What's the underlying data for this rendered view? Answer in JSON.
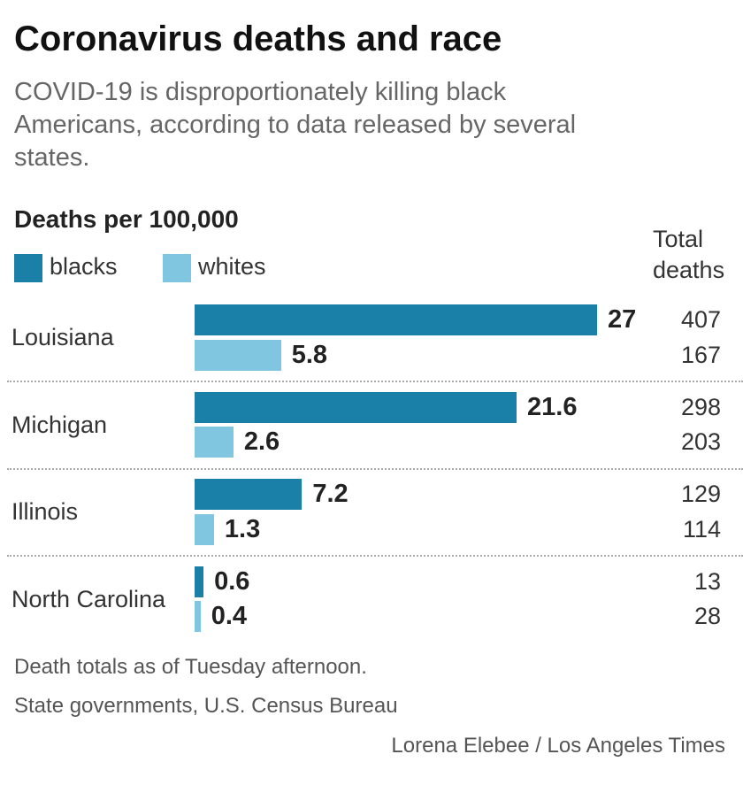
{
  "title": "Coronavirus deaths and race",
  "subtitle": "COVID-19 is disproportionately killing black Americans, according to data released by several states.",
  "note": "Death totals as of Tuesday afternoon.",
  "source": "State governments, U.S. Census Bureau",
  "credit": "Lorena Elebee / Los Angeles Times",
  "chart_data": {
    "type": "bar",
    "orientation": "horizontal",
    "ylabel": "Deaths per 100,000",
    "categories": [
      "Louisiana",
      "Michigan",
      "Illinois",
      "North Carolina"
    ],
    "series": [
      {
        "name": "blacks",
        "color": "#1a80a8",
        "values": [
          27,
          21.6,
          7.2,
          0.6
        ],
        "labels": [
          "27",
          "21.6",
          "7.2",
          "0.6"
        ],
        "total_deaths": [
          "407",
          "298",
          "129",
          "13"
        ]
      },
      {
        "name": "whites",
        "color": "#80c6e0",
        "values": [
          5.8,
          2.6,
          1.3,
          0.4
        ],
        "labels": [
          "5.8",
          "2.6",
          "1.3",
          "0.4"
        ],
        "total_deaths": [
          "167",
          "203",
          "114",
          "28"
        ]
      }
    ],
    "total_header": "Total deaths",
    "xlim": [
      0,
      27
    ],
    "grid": false,
    "legend": "top-left"
  }
}
